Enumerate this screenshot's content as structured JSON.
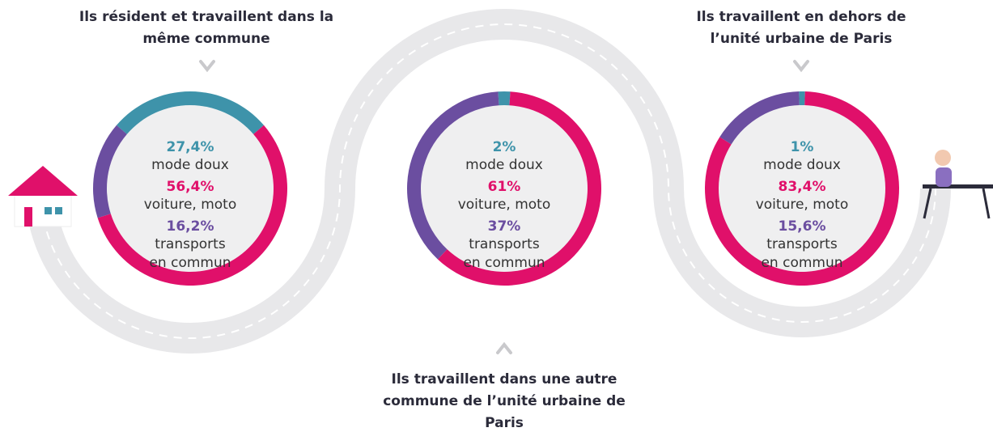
{
  "chart_data": [
    {
      "type": "donut",
      "title": "Ils résident et travaillent dans la même commune",
      "categories": [
        "mode doux",
        "voiture, moto",
        "transports en commun"
      ],
      "values": [
        27.4,
        56.4,
        16.2
      ],
      "value_labels": [
        "27,4%",
        "56,4%",
        "16,2%"
      ],
      "colors": [
        "#3e93aa",
        "#e0106a",
        "#6b4ea0"
      ]
    },
    {
      "type": "donut",
      "title": "Ils travaillent dans une autre commune de l’unité urbaine de Paris",
      "categories": [
        "mode doux",
        "voiture, moto",
        "transports en commun"
      ],
      "values": [
        2,
        61,
        37
      ],
      "value_labels": [
        "2%",
        "61%",
        "37%"
      ],
      "colors": [
        "#3e93aa",
        "#e0106a",
        "#6b4ea0"
      ]
    },
    {
      "type": "donut",
      "title": "Ils travaillent en dehors de l’unité urbaine de Paris",
      "categories": [
        "mode doux",
        "voiture, moto",
        "transports en commun"
      ],
      "values": [
        1,
        83.4,
        15.6
      ],
      "value_labels": [
        "1%",
        "83,4%",
        "15,6%"
      ],
      "colors": [
        "#3e93aa",
        "#e0106a",
        "#6b4ea0"
      ]
    }
  ]
}
